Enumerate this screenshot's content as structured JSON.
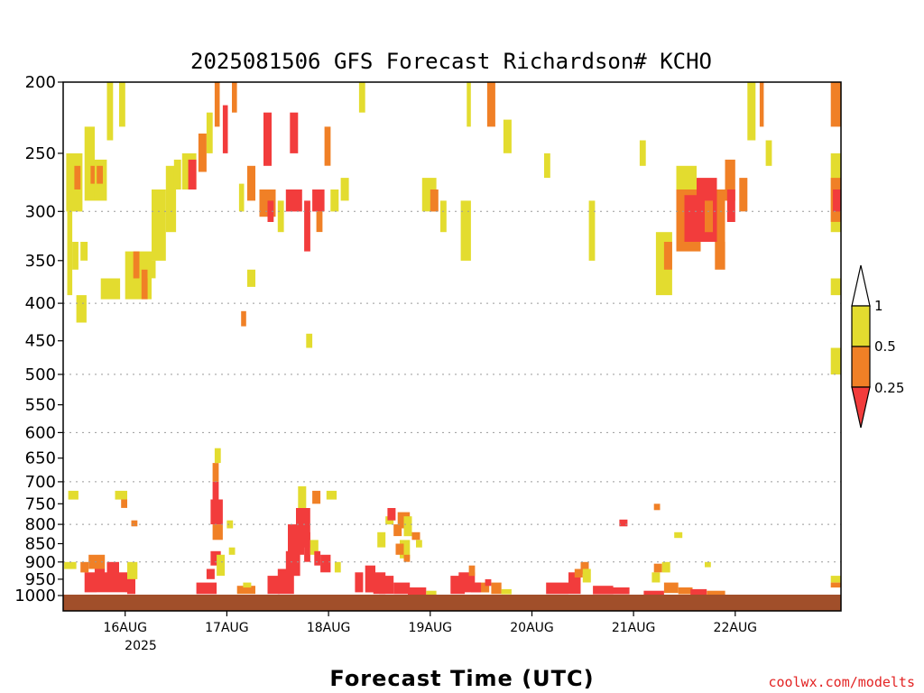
{
  "chart_data": {
    "type": "heatmap",
    "title": "2025081506 GFS Forecast Richardson# KCHO",
    "xlabel": "Forecast Time (UTC)",
    "ylabel": "",
    "credit": "coolwx.com/modelts",
    "y_axis": {
      "scale": "log-pressure",
      "inverted": true,
      "range": [
        200,
        1000
      ],
      "ticks": [
        200,
        250,
        300,
        350,
        400,
        450,
        500,
        550,
        600,
        650,
        700,
        750,
        800,
        850,
        900,
        950,
        1000
      ],
      "gridlines": [
        300,
        400,
        500,
        600,
        700,
        800,
        900
      ]
    },
    "x_axis": {
      "ticks": [
        "16AUG",
        "17AUG",
        "18AUG",
        "19AUG",
        "20AUG",
        "21AUG",
        "22AUG"
      ],
      "year_label": "2025",
      "range_days": [
        -0.61,
        7.04
      ]
    },
    "colorbar": {
      "levels": [
        "1",
        "0.5",
        "0.25"
      ],
      "colors": {
        "yellow": "#e3dc2f",
        "orange": "#f08026",
        "red": "#f23c3c",
        "ground": "#a14f2a"
      }
    },
    "regions": [
      [
        -0.61,
        200,
        -0.57,
        1000,
        "white"
      ],
      [
        -0.58,
        250,
        -0.42,
        300,
        "yellow"
      ],
      [
        -0.5,
        260,
        -0.44,
        280,
        "orange"
      ],
      [
        -0.57,
        300,
        -0.52,
        390,
        "yellow"
      ],
      [
        -0.52,
        330,
        -0.46,
        360,
        "yellow"
      ],
      [
        -0.48,
        390,
        -0.38,
        425,
        "yellow"
      ],
      [
        -0.4,
        230,
        -0.3,
        290,
        "yellow"
      ],
      [
        -0.34,
        260,
        -0.28,
        275,
        "orange"
      ],
      [
        -0.3,
        255,
        -0.18,
        290,
        "yellow"
      ],
      [
        -0.28,
        260,
        -0.22,
        275,
        "orange"
      ],
      [
        -0.44,
        330,
        -0.37,
        350,
        "yellow"
      ],
      [
        -0.18,
        200,
        -0.12,
        240,
        "yellow"
      ],
      [
        -0.06,
        200,
        0.0,
        230,
        "yellow"
      ],
      [
        -0.24,
        370,
        -0.05,
        395,
        "yellow"
      ],
      [
        0.0,
        340,
        0.26,
        395,
        "yellow"
      ],
      [
        0.08,
        340,
        0.14,
        370,
        "orange"
      ],
      [
        0.16,
        360,
        0.22,
        395,
        "orange"
      ],
      [
        0.22,
        350,
        0.3,
        370,
        "yellow"
      ],
      [
        0.26,
        280,
        0.4,
        350,
        "yellow"
      ],
      [
        0.4,
        260,
        0.5,
        320,
        "yellow"
      ],
      [
        0.48,
        255,
        0.55,
        280,
        "yellow"
      ],
      [
        0.56,
        250,
        0.7,
        280,
        "yellow"
      ],
      [
        0.62,
        255,
        0.7,
        280,
        "red"
      ],
      [
        0.72,
        235,
        0.8,
        265,
        "orange"
      ],
      [
        0.8,
        220,
        0.86,
        250,
        "yellow"
      ],
      [
        0.88,
        200,
        0.93,
        230,
        "orange"
      ],
      [
        0.96,
        215,
        1.01,
        250,
        "red"
      ],
      [
        1.05,
        200,
        1.1,
        220,
        "orange"
      ],
      [
        1.12,
        275,
        1.17,
        300,
        "yellow"
      ],
      [
        1.2,
        260,
        1.28,
        290,
        "orange"
      ],
      [
        1.36,
        220,
        1.44,
        260,
        "red"
      ],
      [
        1.32,
        280,
        1.48,
        305,
        "orange"
      ],
      [
        1.4,
        290,
        1.46,
        310,
        "red"
      ],
      [
        1.5,
        290,
        1.56,
        320,
        "yellow"
      ],
      [
        1.58,
        280,
        1.74,
        300,
        "red"
      ],
      [
        1.62,
        220,
        1.7,
        250,
        "red"
      ],
      [
        1.76,
        290,
        1.82,
        340,
        "red"
      ],
      [
        1.84,
        280,
        1.96,
        300,
        "red"
      ],
      [
        1.88,
        300,
        1.94,
        320,
        "orange"
      ],
      [
        1.96,
        230,
        2.02,
        260,
        "orange"
      ],
      [
        2.02,
        280,
        2.1,
        300,
        "yellow"
      ],
      [
        1.2,
        360,
        1.28,
        380,
        "yellow"
      ],
      [
        1.14,
        410,
        1.19,
        430,
        "orange"
      ],
      [
        1.78,
        440,
        1.84,
        460,
        "yellow"
      ],
      [
        2.12,
        270,
        2.2,
        290,
        "yellow"
      ],
      [
        2.92,
        270,
        3.06,
        300,
        "yellow"
      ],
      [
        3.0,
        280,
        3.08,
        300,
        "orange"
      ],
      [
        3.36,
        200,
        3.4,
        230,
        "yellow"
      ],
      [
        3.56,
        200,
        3.64,
        230,
        "orange"
      ],
      [
        2.3,
        200,
        2.36,
        220,
        "yellow"
      ],
      [
        3.72,
        225,
        3.8,
        250,
        "yellow"
      ],
      [
        3.1,
        290,
        3.16,
        320,
        "yellow"
      ],
      [
        3.3,
        290,
        3.4,
        350,
        "yellow"
      ],
      [
        5.42,
        260,
        5.62,
        290,
        "yellow"
      ],
      [
        5.42,
        280,
        5.66,
        340,
        "orange"
      ],
      [
        5.5,
        285,
        5.62,
        330,
        "red"
      ],
      [
        5.62,
        270,
        5.82,
        330,
        "red"
      ],
      [
        5.7,
        290,
        5.78,
        320,
        "orange"
      ],
      [
        5.82,
        280,
        5.9,
        330,
        "orange"
      ],
      [
        5.9,
        255,
        6.0,
        290,
        "orange"
      ],
      [
        5.92,
        280,
        6.0,
        310,
        "red"
      ],
      [
        5.22,
        320,
        5.38,
        390,
        "yellow"
      ],
      [
        5.3,
        330,
        5.38,
        360,
        "orange"
      ],
      [
        5.8,
        330,
        5.9,
        360,
        "orange"
      ],
      [
        6.12,
        200,
        6.2,
        240,
        "yellow"
      ],
      [
        6.24,
        200,
        6.28,
        230,
        "orange"
      ],
      [
        6.3,
        240,
        6.36,
        260,
        "yellow"
      ],
      [
        6.04,
        270,
        6.12,
        300,
        "orange"
      ],
      [
        4.12,
        250,
        4.18,
        270,
        "yellow"
      ],
      [
        4.56,
        290,
        4.62,
        350,
        "yellow"
      ],
      [
        5.06,
        240,
        5.12,
        260,
        "yellow"
      ],
      [
        6.94,
        200,
        7.04,
        230,
        "orange"
      ],
      [
        6.94,
        250,
        7.04,
        320,
        "yellow"
      ],
      [
        6.94,
        270,
        7.04,
        310,
        "orange"
      ],
      [
        6.96,
        280,
        7.04,
        300,
        "red"
      ],
      [
        6.94,
        370,
        7.04,
        390,
        "yellow"
      ],
      [
        6.94,
        460,
        7.04,
        500,
        "yellow"
      ],
      [
        -0.56,
        720,
        -0.46,
        740,
        "yellow"
      ],
      [
        -0.1,
        720,
        0.02,
        740,
        "yellow"
      ],
      [
        -0.04,
        740,
        0.02,
        760,
        "orange"
      ],
      [
        0.06,
        790,
        0.12,
        805,
        "orange"
      ],
      [
        -0.6,
        900,
        -0.48,
        920,
        "yellow"
      ],
      [
        -0.36,
        880,
        -0.2,
        920,
        "orange"
      ],
      [
        -0.3,
        920,
        -0.2,
        950,
        "red"
      ],
      [
        -0.4,
        930,
        0.1,
        990,
        "red"
      ],
      [
        -0.44,
        900,
        -0.36,
        930,
        "orange"
      ],
      [
        -0.18,
        900,
        -0.06,
        960,
        "red"
      ],
      [
        0.02,
        900,
        0.12,
        950,
        "yellow"
      ],
      [
        0.02,
        950,
        0.1,
        995,
        "red"
      ],
      [
        -0.28,
        990,
        0.0,
        1000,
        "white"
      ],
      [
        0.7,
        960,
        0.9,
        995,
        "red"
      ],
      [
        0.8,
        920,
        0.88,
        950,
        "red"
      ],
      [
        0.84,
        870,
        0.94,
        910,
        "red"
      ],
      [
        0.9,
        880,
        0.98,
        940,
        "yellow"
      ],
      [
        0.86,
        800,
        0.96,
        840,
        "orange"
      ],
      [
        0.84,
        740,
        0.96,
        800,
        "red"
      ],
      [
        0.86,
        700,
        0.92,
        740,
        "red"
      ],
      [
        0.86,
        660,
        0.92,
        700,
        "orange"
      ],
      [
        0.88,
        630,
        0.94,
        660,
        "yellow"
      ],
      [
        1.0,
        790,
        1.06,
        810,
        "yellow"
      ],
      [
        1.02,
        860,
        1.08,
        880,
        "yellow"
      ],
      [
        1.1,
        970,
        1.28,
        995,
        "orange"
      ],
      [
        1.16,
        960,
        1.24,
        975,
        "yellow"
      ],
      [
        1.4,
        940,
        1.52,
        995,
        "red"
      ],
      [
        1.5,
        920,
        1.66,
        995,
        "red"
      ],
      [
        1.58,
        870,
        1.72,
        940,
        "red"
      ],
      [
        1.6,
        800,
        1.76,
        880,
        "red"
      ],
      [
        1.68,
        760,
        1.82,
        860,
        "red"
      ],
      [
        1.76,
        820,
        1.82,
        900,
        "red"
      ],
      [
        1.7,
        710,
        1.78,
        760,
        "yellow"
      ],
      [
        1.82,
        840,
        1.9,
        880,
        "yellow"
      ],
      [
        1.86,
        870,
        1.92,
        910,
        "red"
      ],
      [
        1.92,
        880,
        2.02,
        930,
        "red"
      ],
      [
        1.84,
        720,
        1.92,
        750,
        "orange"
      ],
      [
        1.98,
        720,
        2.08,
        740,
        "yellow"
      ],
      [
        2.06,
        900,
        2.12,
        930,
        "yellow"
      ],
      [
        2.26,
        930,
        2.34,
        990,
        "red"
      ],
      [
        2.36,
        910,
        2.46,
        990,
        "red"
      ],
      [
        2.44,
        930,
        2.56,
        995,
        "red"
      ],
      [
        2.5,
        940,
        2.64,
        995,
        "red"
      ],
      [
        2.56,
        780,
        2.64,
        800,
        "yellow"
      ],
      [
        2.58,
        760,
        2.66,
        790,
        "red"
      ],
      [
        2.64,
        800,
        2.72,
        830,
        "orange"
      ],
      [
        2.68,
        770,
        2.8,
        810,
        "orange"
      ],
      [
        2.74,
        780,
        2.82,
        830,
        "yellow"
      ],
      [
        2.7,
        840,
        2.8,
        890,
        "yellow"
      ],
      [
        2.66,
        850,
        2.74,
        880,
        "orange"
      ],
      [
        2.74,
        880,
        2.8,
        900,
        "orange"
      ],
      [
        2.48,
        820,
        2.56,
        860,
        "yellow"
      ],
      [
        2.82,
        820,
        2.9,
        840,
        "orange"
      ],
      [
        2.86,
        840,
        2.92,
        860,
        "yellow"
      ],
      [
        2.64,
        960,
        2.8,
        995,
        "red"
      ],
      [
        2.78,
        975,
        2.96,
        998,
        "red"
      ],
      [
        2.96,
        985,
        3.06,
        998,
        "yellow"
      ],
      [
        3.2,
        940,
        3.34,
        995,
        "red"
      ],
      [
        3.28,
        930,
        3.44,
        990,
        "red"
      ],
      [
        3.38,
        910,
        3.44,
        940,
        "orange"
      ],
      [
        3.44,
        960,
        3.58,
        990,
        "orange"
      ],
      [
        3.4,
        960,
        3.5,
        990,
        "red"
      ],
      [
        3.54,
        950,
        3.6,
        970,
        "red"
      ],
      [
        3.6,
        960,
        3.7,
        995,
        "orange"
      ],
      [
        3.7,
        980,
        3.8,
        996,
        "yellow"
      ],
      [
        4.14,
        960,
        4.36,
        995,
        "red"
      ],
      [
        4.36,
        930,
        4.48,
        995,
        "red"
      ],
      [
        4.42,
        920,
        4.5,
        945,
        "orange"
      ],
      [
        4.48,
        900,
        4.56,
        935,
        "orange"
      ],
      [
        4.5,
        920,
        4.58,
        960,
        "yellow"
      ],
      [
        4.6,
        970,
        4.8,
        996,
        "red"
      ],
      [
        4.78,
        975,
        4.96,
        996,
        "red"
      ],
      [
        4.86,
        788,
        4.94,
        805,
        "red"
      ],
      [
        5.18,
        930,
        5.26,
        960,
        "yellow"
      ],
      [
        5.2,
        905,
        5.28,
        930,
        "orange"
      ],
      [
        5.28,
        900,
        5.36,
        930,
        "yellow"
      ],
      [
        5.1,
        985,
        5.3,
        998,
        "red"
      ],
      [
        5.3,
        960,
        5.44,
        992,
        "orange"
      ],
      [
        5.44,
        975,
        5.58,
        996,
        "orange"
      ],
      [
        5.56,
        980,
        5.72,
        997,
        "red"
      ],
      [
        5.72,
        985,
        5.9,
        998,
        "orange"
      ],
      [
        5.2,
        750,
        5.26,
        765,
        "orange"
      ],
      [
        5.4,
        820,
        5.48,
        835,
        "yellow"
      ],
      [
        5.7,
        900,
        5.76,
        915,
        "yellow"
      ],
      [
        6.94,
        940,
        7.04,
        960,
        "yellow"
      ],
      [
        6.94,
        960,
        7.04,
        975,
        "orange"
      ]
    ]
  }
}
